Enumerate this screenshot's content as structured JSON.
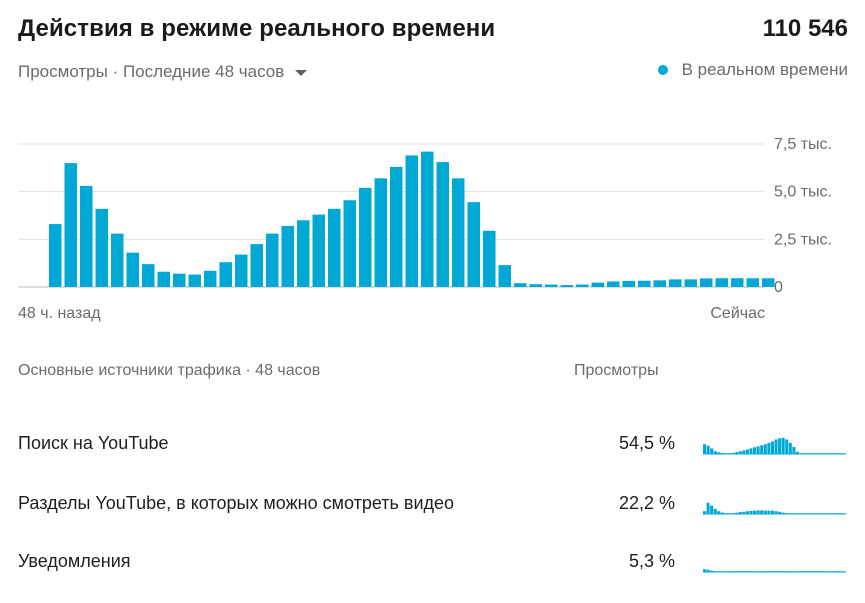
{
  "header": {
    "title": "Действия в режиме реального времени",
    "total": "110 546",
    "metric_selector": "Просмотры · Последние 48 часов",
    "realtime_label": "В реальном времени"
  },
  "colors": {
    "accent": "#00a8d6",
    "grid": "#e0e0e0",
    "baseline": "#bdbdbd",
    "muted_text": "#6b6b6b"
  },
  "chart_data": {
    "type": "bar",
    "title": "",
    "xlabel": "",
    "ylabel": "",
    "x_start_label": "48 ч. назад",
    "x_end_label": "Сейчас",
    "y_ticks": [
      {
        "value": 0,
        "label": "0"
      },
      {
        "value": 2500,
        "label": "2,5 тыс."
      },
      {
        "value": 5000,
        "label": "5,0 тыс."
      },
      {
        "value": 7500,
        "label": "7,5 тыс."
      }
    ],
    "ylim": [
      0,
      7500
    ],
    "grid": true,
    "values": [
      3300,
      6500,
      5300,
      4100,
      2800,
      1800,
      1200,
      800,
      700,
      650,
      850,
      1300,
      1700,
      2250,
      2800,
      3200,
      3500,
      3800,
      4100,
      4550,
      5200,
      5700,
      6300,
      6900,
      7100,
      6550,
      5700,
      4450,
      2950,
      1150,
      200,
      150,
      130,
      100,
      130,
      230,
      290,
      320,
      330,
      350,
      400,
      400,
      450,
      460,
      460,
      460,
      460
    ]
  },
  "traffic": {
    "header": "Основные источники трафика · 48 часов",
    "views_header": "Просмотры",
    "rows": [
      {
        "label": "Поиск на YouTube",
        "percent": "54,5 %",
        "spark": [
          0.35,
          0.3,
          0.2,
          0.1,
          0.06,
          0.04,
          0.02,
          0.02,
          0.04,
          0.07,
          0.1,
          0.13,
          0.16,
          0.2,
          0.24,
          0.27,
          0.31,
          0.35,
          0.4,
          0.45,
          0.52,
          0.56,
          0.58,
          0.52,
          0.4,
          0.25,
          0.08,
          0.02,
          0.02,
          0.02,
          0.02,
          0.02,
          0.02,
          0.02,
          0.02,
          0.02,
          0.02,
          0.02,
          0.02,
          0.02
        ]
      },
      {
        "label": "Разделы YouTube, в которых можно смотреть видео",
        "percent": "22,2 %",
        "spark": [
          0.1,
          0.4,
          0.3,
          0.18,
          0.1,
          0.05,
          0.03,
          0.02,
          0.03,
          0.05,
          0.07,
          0.08,
          0.1,
          0.11,
          0.12,
          0.13,
          0.13,
          0.12,
          0.12,
          0.12,
          0.1,
          0.08,
          0.05,
          0.03,
          0.02,
          0.02,
          0.02,
          0.02,
          0.02,
          0.02,
          0.02,
          0.02,
          0.02,
          0.02,
          0.02,
          0.02,
          0.02,
          0.02,
          0.02,
          0.02
        ]
      },
      {
        "label": "Уведомления",
        "percent": "5,3 %",
        "spark": [
          0.1,
          0.08,
          0.05,
          0.03,
          0.02,
          0.02,
          0.02,
          0.02,
          0.02,
          0.02,
          0.02,
          0.02,
          0.02,
          0.02,
          0.02,
          0.02,
          0.02,
          0.02,
          0.02,
          0.02,
          0.02,
          0.02,
          0.02,
          0.02,
          0.02,
          0.02,
          0.02,
          0.02,
          0.02,
          0.02,
          0.02,
          0.02,
          0.02,
          0.02,
          0.02,
          0.02,
          0.02,
          0.02,
          0.02,
          0.02
        ]
      }
    ]
  }
}
